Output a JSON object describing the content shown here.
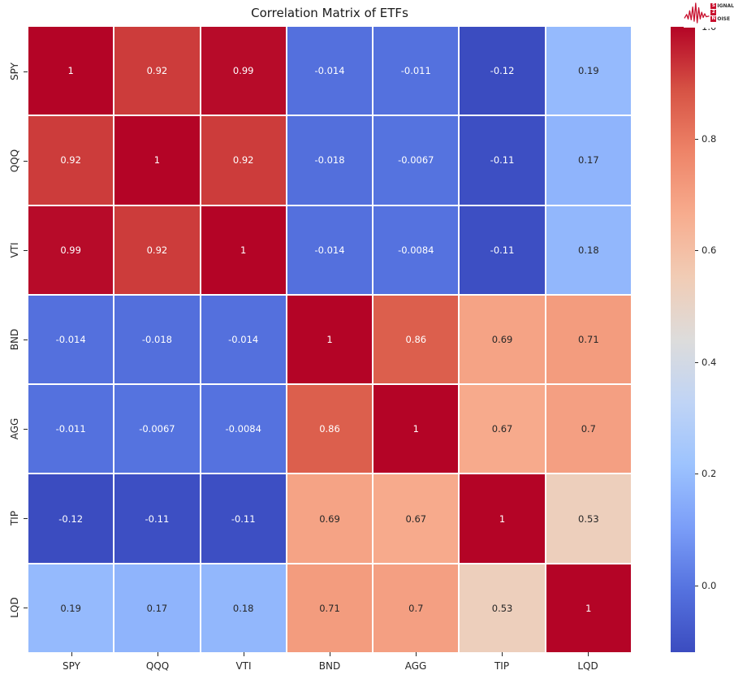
{
  "title": "Correlation Matrix of ETFs",
  "background_color": "#FFFFFF",
  "logo": {
    "name": "signal-2-noise",
    "color": "#C8102E",
    "line1_box": "S",
    "line1_rest": "IGNAL",
    "line2_box": "2",
    "line3_box": "N",
    "line3_rest": "OISE"
  },
  "chart_data": {
    "type": "heatmap",
    "title": "Correlation Matrix of ETFs",
    "categories": [
      "SPY",
      "QQQ",
      "VTI",
      "BND",
      "AGG",
      "TIP",
      "LQD"
    ],
    "matrix": [
      [
        1,
        0.92,
        0.99,
        -0.014,
        -0.011,
        -0.12,
        0.19
      ],
      [
        0.92,
        1,
        0.92,
        -0.018,
        -0.0067,
        -0.11,
        0.17
      ],
      [
        0.99,
        0.92,
        1,
        -0.014,
        -0.0084,
        -0.11,
        0.18
      ],
      [
        -0.014,
        -0.018,
        -0.014,
        1,
        0.86,
        0.69,
        0.71
      ],
      [
        -0.011,
        -0.0067,
        -0.0084,
        0.86,
        1,
        0.67,
        0.7
      ],
      [
        -0.12,
        -0.11,
        -0.11,
        0.69,
        0.67,
        1,
        0.53
      ],
      [
        0.19,
        0.17,
        0.18,
        0.71,
        0.7,
        0.53,
        1
      ]
    ],
    "cell_labels": [
      [
        "1",
        "0.92",
        "0.99",
        "-0.014",
        "-0.011",
        "-0.12",
        "0.19"
      ],
      [
        "0.92",
        "1",
        "0.92",
        "-0.018",
        "-0.0067",
        "-0.11",
        "0.17"
      ],
      [
        "0.99",
        "0.92",
        "1",
        "-0.014",
        "-0.0084",
        "-0.11",
        "0.18"
      ],
      [
        "-0.014",
        "-0.018",
        "-0.014",
        "1",
        "0.86",
        "0.69",
        "0.71"
      ],
      [
        "-0.011",
        "-0.0067",
        "-0.0084",
        "0.86",
        "1",
        "0.67",
        "0.7"
      ],
      [
        "-0.12",
        "-0.11",
        "-0.11",
        "0.69",
        "0.67",
        "1",
        "0.53"
      ],
      [
        "0.19",
        "0.17",
        "0.18",
        "0.71",
        "0.7",
        "0.53",
        "1"
      ]
    ],
    "vmin": -0.12,
    "vmax": 1.0,
    "colormap": "coolwarm",
    "colormap_stops": [
      "#3B4CC0",
      "#5572DF",
      "#7B9EF8",
      "#9DC3FE",
      "#C0D4F5",
      "#DDDCDB",
      "#F1CCB5",
      "#F7AC8E",
      "#EE8468",
      "#D65244",
      "#B40426"
    ],
    "gridline_color": "#FFFFFF",
    "annotation_colors": {
      "light": "#FFFFFF",
      "dark": "#262626"
    },
    "legend_position": "right",
    "colorbar_ticks": [
      {
        "label": "1.0",
        "value": 1.0
      },
      {
        "label": "0.8",
        "value": 0.8
      },
      {
        "label": "0.6",
        "value": 0.6
      },
      {
        "label": "0.4",
        "value": 0.4
      },
      {
        "label": "0.2",
        "value": 0.2
      },
      {
        "label": "0.0",
        "value": 0.0
      }
    ]
  }
}
